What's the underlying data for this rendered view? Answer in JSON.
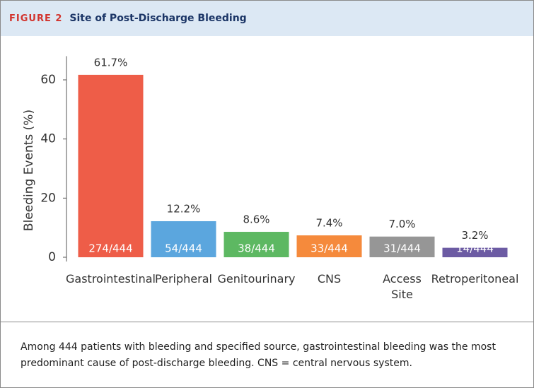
{
  "figure_label": "FIGURE 2",
  "chart_data": {
    "type": "bar",
    "title": "Site of Post-Discharge Bleeding",
    "y_label": "Bleeding Events (%)",
    "categories": [
      "Gastrointestinal",
      "Peripheral",
      "Genitourinary",
      "CNS",
      "Access\nSite",
      "Retroperitoneal"
    ],
    "values": [
      61.7,
      12.2,
      8.6,
      7.4,
      7.0,
      3.2
    ],
    "value_labels": [
      "61.7%",
      "12.2%",
      "8.6%",
      "7.4%",
      "7.0%",
      "3.2%"
    ],
    "count_labels": [
      "274/444",
      "54/444",
      "38/444",
      "33/444",
      "31/444",
      "14/444"
    ],
    "colors": [
      "#ee5d48",
      "#5ba6de",
      "#5db862",
      "#f58a3c",
      "#969696",
      "#6c5ba3"
    ],
    "ylim": [
      0,
      68
    ],
    "yticks": [
      0,
      20,
      40,
      60
    ],
    "grid": false
  },
  "caption": "Among 444 patients with bleeding and specified source, gastrointestinal bleeding was the most predominant cause of post-discharge bleeding. CNS = central nervous system."
}
